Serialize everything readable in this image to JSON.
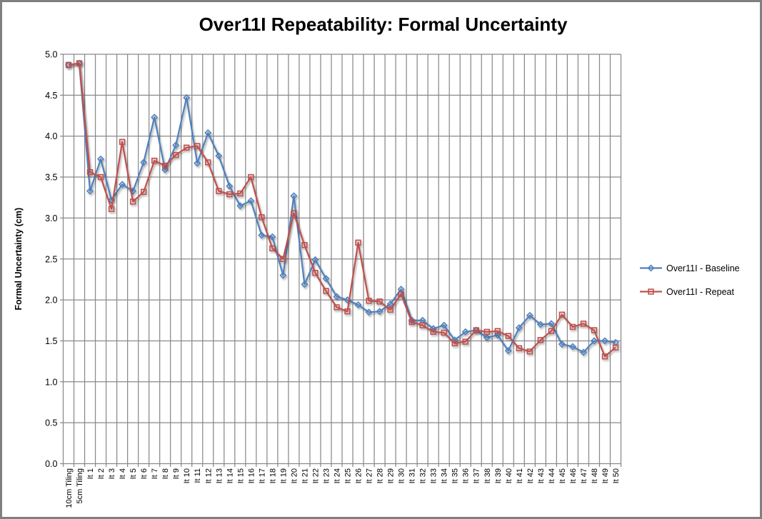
{
  "frame": {
    "border_color": "#808080",
    "background_color": "#ffffff"
  },
  "chart_data": {
    "type": "line",
    "title": "Over11I Repeatability: Formal Uncertainty",
    "xlabel": "",
    "ylabel": "Formal Uncertainty (cm)",
    "ylim": [
      0.0,
      5.0
    ],
    "ytick_step": 0.5,
    "ytick_labels": [
      "0.0",
      "0.5",
      "1.0",
      "1.5",
      "2.0",
      "2.5",
      "3.0",
      "3.5",
      "4.0",
      "4.5",
      "5.0"
    ],
    "grid": "both",
    "gridline_color": "#898989",
    "legend_position": "right",
    "categories": [
      "10cm Tiling",
      "5cm Tiling",
      "It 1",
      "It 2",
      "It 3",
      "It 4",
      "It 5",
      "It 6",
      "It 7",
      "It 8",
      "It 9",
      "It 10",
      "It 11",
      "It 12",
      "It 13",
      "It 14",
      "It 15",
      "It 16",
      "It 17",
      "It 18",
      "It 19",
      "It 20",
      "It 21",
      "It 22",
      "It 23",
      "It 24",
      "It 25",
      "It 26",
      "It 27",
      "It 28",
      "It 29",
      "It 30",
      "It 31",
      "It 32",
      "It 33",
      "It 34",
      "It 35",
      "It 36",
      "It 37",
      "It 38",
      "It 39",
      "It 40",
      "It 41",
      "It 42",
      "It 43",
      "It 44",
      "It 45",
      "It 46",
      "It 47",
      "It 48",
      "It 49",
      "It 50"
    ],
    "series": [
      {
        "name": "Over11I - Baseline",
        "color": "#4F81BD",
        "marker": "diamond",
        "values": [
          4.87,
          4.89,
          3.33,
          3.72,
          3.22,
          3.41,
          3.33,
          3.68,
          4.23,
          3.59,
          3.89,
          4.47,
          3.67,
          4.04,
          3.76,
          3.39,
          3.15,
          3.21,
          2.79,
          2.77,
          2.3,
          3.27,
          2.19,
          2.49,
          2.26,
          2.04,
          2.0,
          1.94,
          1.85,
          1.86,
          1.95,
          2.13,
          1.75,
          1.75,
          1.65,
          1.69,
          1.51,
          1.61,
          1.63,
          1.54,
          1.57,
          1.38,
          1.66,
          1.81,
          1.7,
          1.71,
          1.46,
          1.43,
          1.36,
          1.5,
          1.5,
          1.48
        ]
      },
      {
        "name": "Over11I - Repeat",
        "color": "#C0504D",
        "marker": "square",
        "values": [
          4.87,
          4.89,
          3.56,
          3.5,
          3.11,
          3.93,
          3.2,
          3.32,
          3.7,
          3.64,
          3.77,
          3.86,
          3.88,
          3.68,
          3.33,
          3.29,
          3.3,
          3.5,
          3.01,
          2.63,
          2.5,
          3.06,
          2.67,
          2.33,
          2.11,
          1.91,
          1.86,
          2.7,
          1.99,
          1.98,
          1.88,
          2.07,
          1.73,
          1.69,
          1.61,
          1.6,
          1.47,
          1.49,
          1.63,
          1.61,
          1.62,
          1.56,
          1.41,
          1.37,
          1.51,
          1.62,
          1.82,
          1.67,
          1.71,
          1.63,
          1.31,
          1.42
        ]
      }
    ]
  }
}
